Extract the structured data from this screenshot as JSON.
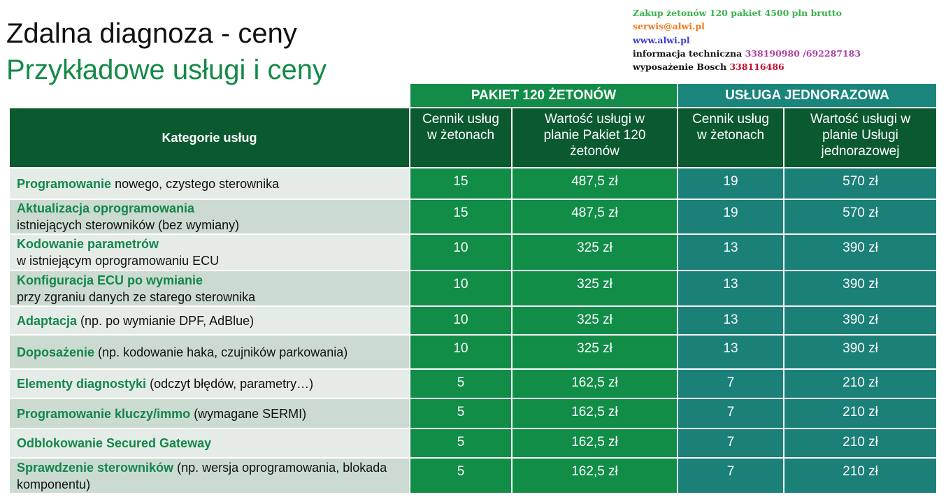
{
  "header": {
    "title": "Zdalna diagnoza - ceny",
    "subtitle": "Przykładowe usługi i ceny"
  },
  "contact": {
    "purchase": "Zakup żetonów 120 pakiet 4500 pln brutto",
    "email": "serwis@alwi.pl",
    "website": "www.alwi.pl",
    "tech_label": "informacja techniczna",
    "tech_phone": "338190980 /692287183",
    "equipment_label": "wyposażenie Bosch",
    "equipment_phone": "338116486"
  },
  "table": {
    "groups": [
      "PAKIET 120 ŻETONÓW",
      "USŁUGA JEDNORAZOWA"
    ],
    "columns": [
      "Kategorie usług",
      "Cennik usług w żetonach",
      "Wartość usługi w planie Pakiet 120 żetonów",
      "Cennik usług w żetonach",
      "Wartość usługi w planie Usługi jednorazowej"
    ],
    "rows": [
      {
        "name": "Programowanie",
        "desc": "nowego, czystego sterownika",
        "cells": [
          15,
          "487,5 zł",
          19,
          "570 zł"
        ]
      },
      {
        "name": "Aktualizacja oprogramowania",
        "desc": "istniejących sterowników (bez wymiany)",
        "cells": [
          15,
          "487,5 zł",
          19,
          "570 zł"
        ]
      },
      {
        "name": "Kodowanie parametrów",
        "desc": "w istniejącym oprogramowaniu ECU",
        "cells": [
          10,
          "325 zł",
          13,
          "390 zł"
        ]
      },
      {
        "name": "Konfiguracja ECU po wymianie",
        "desc": "przy zgraniu danych ze starego sterownika",
        "cells": [
          10,
          "325 zł",
          13,
          "390 zł"
        ]
      },
      {
        "name": "Adaptacja",
        "desc": "(np. po wymianie DPF, AdBlue)",
        "cells": [
          10,
          "325 zł",
          13,
          "390 zł"
        ]
      },
      {
        "name": "Doposażenie",
        "desc": "(np. kodowanie haka, czujników parkowania)",
        "cells": [
          10,
          "325 zł",
          13,
          "390 zł"
        ]
      },
      {
        "name": "Elementy diagnostyki",
        "desc": "(odczyt błędów, parametry…)",
        "cells": [
          5,
          "162,5 zł",
          7,
          "210 zł"
        ]
      },
      {
        "name": "Programowanie kluczy/immo",
        "desc": "(wymagane SERMI)",
        "cells": [
          5,
          "162,5 zł",
          7,
          "210 zł"
        ]
      },
      {
        "name": "Odblokowanie Secured Gateway",
        "cells": [
          5,
          "162,5 zł",
          7,
          "210 zł"
        ]
      },
      {
        "name": "Sprawdzenie sterowników",
        "desc": "(np. wersja oprogramowania, blokada komponentu)",
        "cells": [
          5,
          "162,5 zł",
          7,
          "210 zł"
        ]
      }
    ]
  }
}
